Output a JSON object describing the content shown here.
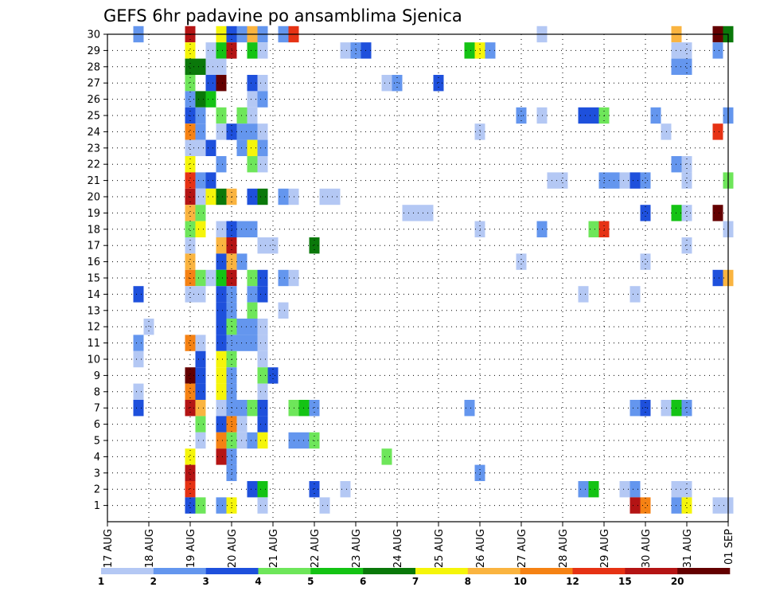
{
  "chart_data": {
    "type": "heatmap",
    "title": "GEFS 6hr padavine po ansamblima Sjenica",
    "xlabel": "",
    "ylabel": "",
    "x_tick_labels": [
      "17 AUG",
      "18 AUG",
      "19 AUG",
      "20 AUG",
      "21 AUG",
      "22 AUG",
      "23 AUG",
      "24 AUG",
      "25 AUG",
      "26 AUG",
      "27 AUG",
      "28 AUG",
      "29 AUG",
      "30 AUG",
      "31 AUG",
      "01 SEP"
    ],
    "y_tick_labels": [
      "1",
      "2",
      "3",
      "4",
      "5",
      "6",
      "7",
      "8",
      "9",
      "10",
      "11",
      "12",
      "13",
      "14",
      "15",
      "16",
      "17",
      "18",
      "19",
      "20",
      "21",
      "22",
      "23",
      "24",
      "25",
      "26",
      "27",
      "28",
      "29",
      "30"
    ],
    "xlim": [
      0,
      60
    ],
    "ylim": [
      0,
      30
    ],
    "x_unit": "6-hour steps from 17 AUG 00Z",
    "y_unit": "ensemble member",
    "grid": true,
    "legend": "colorbar-bottom",
    "colorbar": {
      "levels": [
        "1",
        "2",
        "3",
        "4",
        "5",
        "6",
        "7",
        "8",
        "10",
        "12",
        "15",
        "20"
      ],
      "colors": [
        "#b4c8f4",
        "#6496ee",
        "#1e50dc",
        "#6ee65a",
        "#14c314",
        "#0a780a",
        "#f5f50a",
        "#fab440",
        "#f58214",
        "#e63214",
        "#b41414",
        "#640000"
      ]
    },
    "cells": [
      [
        3,
        30,
        2
      ],
      [
        8,
        30,
        11
      ],
      [
        11,
        30,
        7
      ],
      [
        12,
        30,
        3
      ],
      [
        13,
        30,
        2
      ],
      [
        14,
        30,
        8
      ],
      [
        15,
        30,
        2
      ],
      [
        17,
        30,
        2
      ],
      [
        18,
        30,
        10
      ],
      [
        42,
        30,
        1
      ],
      [
        55,
        30,
        8
      ],
      [
        59,
        30,
        12
      ],
      [
        60,
        30,
        6
      ],
      [
        8,
        29,
        7
      ],
      [
        10,
        29,
        1
      ],
      [
        11,
        29,
        5
      ],
      [
        12,
        29,
        11
      ],
      [
        14,
        29,
        5
      ],
      [
        15,
        29,
        1
      ],
      [
        23,
        29,
        1
      ],
      [
        24,
        29,
        2
      ],
      [
        25,
        29,
        3
      ],
      [
        35,
        29,
        5
      ],
      [
        36,
        29,
        7
      ],
      [
        37,
        29,
        2
      ],
      [
        55,
        29,
        1
      ],
      [
        56,
        29,
        1
      ],
      [
        59,
        29,
        2
      ],
      [
        8,
        28,
        6
      ],
      [
        9,
        28,
        6
      ],
      [
        10,
        28,
        1
      ],
      [
        11,
        28,
        1
      ],
      [
        55,
        28,
        2
      ],
      [
        56,
        28,
        2
      ],
      [
        8,
        27,
        4
      ],
      [
        10,
        27,
        3
      ],
      [
        11,
        27,
        12
      ],
      [
        14,
        27,
        3
      ],
      [
        15,
        27,
        1
      ],
      [
        27,
        27,
        1
      ],
      [
        28,
        27,
        2
      ],
      [
        32,
        27,
        3
      ],
      [
        8,
        26,
        2
      ],
      [
        9,
        26,
        6
      ],
      [
        10,
        26,
        5
      ],
      [
        14,
        26,
        1
      ],
      [
        15,
        26,
        2
      ],
      [
        8,
        25,
        3
      ],
      [
        9,
        25,
        2
      ],
      [
        11,
        25,
        4
      ],
      [
        13,
        25,
        4
      ],
      [
        14,
        25,
        1
      ],
      [
        40,
        25,
        2
      ],
      [
        42,
        25,
        1
      ],
      [
        46,
        25,
        3
      ],
      [
        47,
        25,
        3
      ],
      [
        48,
        25,
        4
      ],
      [
        53,
        25,
        2
      ],
      [
        60,
        25,
        2
      ],
      [
        8,
        24,
        9
      ],
      [
        9,
        24,
        2
      ],
      [
        11,
        24,
        1
      ],
      [
        12,
        24,
        3
      ],
      [
        13,
        24,
        2
      ],
      [
        14,
        24,
        2
      ],
      [
        15,
        24,
        1
      ],
      [
        36,
        24,
        1
      ],
      [
        54,
        24,
        1
      ],
      [
        59,
        24,
        10
      ],
      [
        8,
        23,
        1
      ],
      [
        9,
        23,
        1
      ],
      [
        10,
        23,
        3
      ],
      [
        13,
        23,
        2
      ],
      [
        14,
        23,
        7
      ],
      [
        15,
        23,
        2
      ],
      [
        8,
        22,
        7
      ],
      [
        11,
        22,
        2
      ],
      [
        14,
        22,
        4
      ],
      [
        15,
        22,
        1
      ],
      [
        55,
        22,
        2
      ],
      [
        56,
        22,
        1
      ],
      [
        8,
        21,
        10
      ],
      [
        9,
        21,
        2
      ],
      [
        10,
        21,
        3
      ],
      [
        43,
        21,
        1
      ],
      [
        44,
        21,
        1
      ],
      [
        48,
        21,
        2
      ],
      [
        49,
        21,
        2
      ],
      [
        50,
        21,
        1
      ],
      [
        51,
        21,
        3
      ],
      [
        52,
        21,
        2
      ],
      [
        56,
        21,
        1
      ],
      [
        60,
        21,
        4
      ],
      [
        8,
        20,
        11
      ],
      [
        9,
        20,
        1
      ],
      [
        10,
        20,
        7
      ],
      [
        11,
        20,
        6
      ],
      [
        12,
        20,
        8
      ],
      [
        14,
        20,
        3
      ],
      [
        15,
        20,
        6
      ],
      [
        17,
        20,
        2
      ],
      [
        18,
        20,
        1
      ],
      [
        21,
        20,
        1
      ],
      [
        22,
        20,
        1
      ],
      [
        29,
        19,
        1
      ],
      [
        30,
        19,
        1
      ],
      [
        31,
        19,
        1
      ],
      [
        8,
        19,
        8
      ],
      [
        9,
        19,
        4
      ],
      [
        52,
        19,
        3
      ],
      [
        55,
        19,
        5
      ],
      [
        56,
        19,
        1
      ],
      [
        59,
        19,
        12
      ],
      [
        8,
        18,
        4
      ],
      [
        9,
        18,
        7
      ],
      [
        11,
        18,
        1
      ],
      [
        12,
        18,
        3
      ],
      [
        13,
        18,
        2
      ],
      [
        14,
        18,
        2
      ],
      [
        36,
        18,
        1
      ],
      [
        42,
        18,
        2
      ],
      [
        47,
        18,
        4
      ],
      [
        48,
        18,
        10
      ],
      [
        60,
        18,
        1
      ],
      [
        8,
        17,
        1
      ],
      [
        11,
        17,
        8
      ],
      [
        12,
        17,
        11
      ],
      [
        15,
        17,
        1
      ],
      [
        16,
        17,
        1
      ],
      [
        20,
        17,
        6
      ],
      [
        56,
        17,
        1
      ],
      [
        8,
        16,
        8
      ],
      [
        11,
        16,
        3
      ],
      [
        12,
        16,
        8
      ],
      [
        13,
        16,
        2
      ],
      [
        40,
        16,
        1
      ],
      [
        52,
        16,
        1
      ],
      [
        8,
        15,
        9
      ],
      [
        9,
        15,
        4
      ],
      [
        10,
        15,
        1
      ],
      [
        11,
        15,
        5
      ],
      [
        12,
        15,
        11
      ],
      [
        14,
        15,
        4
      ],
      [
        15,
        15,
        3
      ],
      [
        17,
        15,
        2
      ],
      [
        18,
        15,
        1
      ],
      [
        59,
        15,
        3
      ],
      [
        60,
        15,
        8
      ],
      [
        3,
        14,
        3
      ],
      [
        8,
        14,
        1
      ],
      [
        9,
        14,
        1
      ],
      [
        11,
        14,
        3
      ],
      [
        12,
        14,
        2
      ],
      [
        14,
        14,
        2
      ],
      [
        15,
        14,
        3
      ],
      [
        46,
        14,
        1
      ],
      [
        51,
        14,
        1
      ],
      [
        11,
        13,
        3
      ],
      [
        12,
        13,
        2
      ],
      [
        14,
        13,
        4
      ],
      [
        17,
        13,
        1
      ],
      [
        4,
        12,
        1
      ],
      [
        11,
        12,
        3
      ],
      [
        12,
        12,
        4
      ],
      [
        13,
        12,
        2
      ],
      [
        14,
        12,
        2
      ],
      [
        15,
        12,
        1
      ],
      [
        3,
        11,
        2
      ],
      [
        8,
        11,
        9
      ],
      [
        9,
        11,
        1
      ],
      [
        11,
        11,
        3
      ],
      [
        12,
        11,
        2
      ],
      [
        13,
        11,
        2
      ],
      [
        14,
        11,
        2
      ],
      [
        15,
        11,
        1
      ],
      [
        3,
        10,
        1
      ],
      [
        9,
        10,
        3
      ],
      [
        11,
        10,
        7
      ],
      [
        12,
        10,
        4
      ],
      [
        15,
        10,
        1
      ],
      [
        8,
        9,
        12
      ],
      [
        9,
        9,
        3
      ],
      [
        11,
        9,
        7
      ],
      [
        12,
        9,
        2
      ],
      [
        15,
        9,
        4
      ],
      [
        16,
        9,
        3
      ],
      [
        3,
        8,
        1
      ],
      [
        8,
        8,
        9
      ],
      [
        9,
        8,
        3
      ],
      [
        11,
        8,
        7
      ],
      [
        12,
        8,
        2
      ],
      [
        15,
        8,
        1
      ],
      [
        3,
        7,
        3
      ],
      [
        8,
        7,
        11
      ],
      [
        9,
        7,
        8
      ],
      [
        11,
        7,
        1
      ],
      [
        12,
        7,
        2
      ],
      [
        13,
        7,
        2
      ],
      [
        14,
        7,
        4
      ],
      [
        15,
        7,
        3
      ],
      [
        18,
        7,
        4
      ],
      [
        19,
        7,
        5
      ],
      [
        20,
        7,
        2
      ],
      [
        35,
        7,
        2
      ],
      [
        51,
        7,
        2
      ],
      [
        52,
        7,
        3
      ],
      [
        54,
        7,
        1
      ],
      [
        55,
        7,
        5
      ],
      [
        56,
        7,
        2
      ],
      [
        9,
        6,
        4
      ],
      [
        11,
        6,
        3
      ],
      [
        12,
        6,
        9
      ],
      [
        13,
        6,
        1
      ],
      [
        15,
        6,
        3
      ],
      [
        9,
        5,
        1
      ],
      [
        11,
        5,
        9
      ],
      [
        12,
        5,
        4
      ],
      [
        13,
        5,
        1
      ],
      [
        14,
        5,
        2
      ],
      [
        15,
        5,
        7
      ],
      [
        18,
        5,
        2
      ],
      [
        19,
        5,
        2
      ],
      [
        20,
        5,
        4
      ],
      [
        8,
        4,
        7
      ],
      [
        11,
        4,
        11
      ],
      [
        12,
        4,
        2
      ],
      [
        27,
        4,
        4
      ],
      [
        8,
        3,
        11
      ],
      [
        12,
        3,
        2
      ],
      [
        36,
        3,
        2
      ],
      [
        8,
        2,
        10
      ],
      [
        14,
        2,
        3
      ],
      [
        15,
        2,
        5
      ],
      [
        20,
        2,
        3
      ],
      [
        23,
        2,
        1
      ],
      [
        46,
        2,
        2
      ],
      [
        47,
        2,
        5
      ],
      [
        50,
        2,
        1
      ],
      [
        51,
        2,
        2
      ],
      [
        55,
        2,
        1
      ],
      [
        56,
        2,
        1
      ],
      [
        8,
        1,
        3
      ],
      [
        9,
        1,
        4
      ],
      [
        11,
        1,
        2
      ],
      [
        12,
        1,
        7
      ],
      [
        15,
        1,
        1
      ],
      [
        21,
        1,
        1
      ],
      [
        51,
        1,
        11
      ],
      [
        52,
        1,
        9
      ],
      [
        55,
        1,
        2
      ],
      [
        56,
        1,
        7
      ],
      [
        59,
        1,
        1
      ],
      [
        60,
        1,
        1
      ]
    ]
  }
}
